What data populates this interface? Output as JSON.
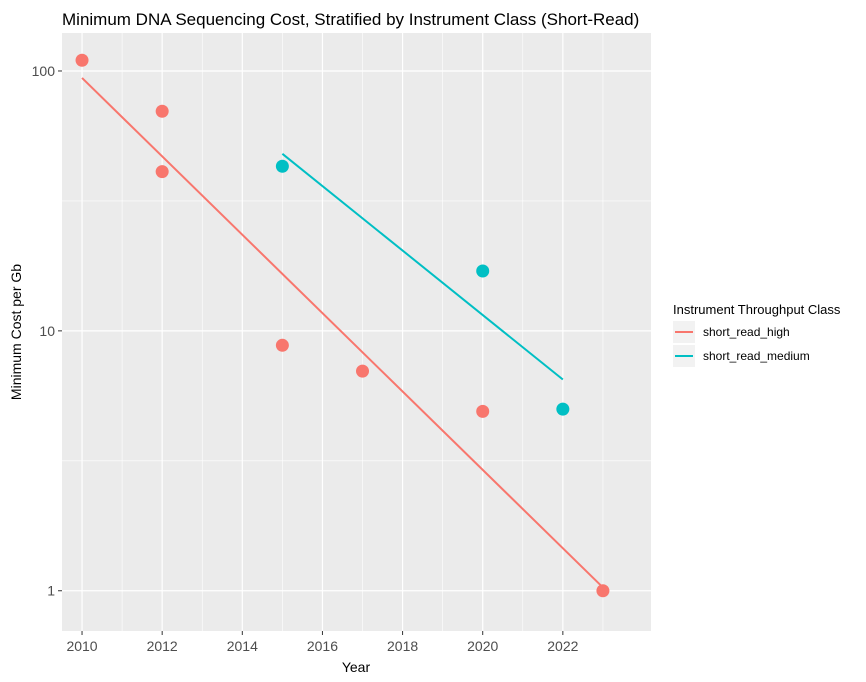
{
  "chart_data": {
    "type": "scatter",
    "title": "Minimum DNA Sequencing Cost, Stratified by Instrument Class (Short-Read)",
    "xlabel": "Year",
    "ylabel": "Minimum Cost per Gb",
    "xlim": [
      2009.5,
      2024.2
    ],
    "ylim": [
      0.7,
      140
    ],
    "y_scale": "log10",
    "x_ticks": [
      2010,
      2012,
      2014,
      2016,
      2018,
      2020,
      2022
    ],
    "x_tick_labels": [
      "2010",
      "2012",
      "2014",
      "2016",
      "2018",
      "2020",
      "2022"
    ],
    "y_ticks": [
      1,
      10,
      100
    ],
    "y_tick_labels": [
      "1",
      "10",
      "100"
    ],
    "grid": true,
    "legend": {
      "title": "Instrument Throughput Class",
      "position": "right"
    },
    "series": [
      {
        "name": "short_read_high",
        "color": "#F8766D",
        "points": [
          {
            "x": 2010,
            "y": 110
          },
          {
            "x": 2012,
            "y": 70
          },
          {
            "x": 2012,
            "y": 41
          },
          {
            "x": 2015,
            "y": 8.8
          },
          {
            "x": 2017,
            "y": 7.0
          },
          {
            "x": 2020,
            "y": 4.9
          },
          {
            "x": 2023,
            "y": 1.0
          }
        ],
        "fit_line": [
          {
            "x": 2010,
            "y": 94
          },
          {
            "x": 2023,
            "y": 1.03
          }
        ]
      },
      {
        "name": "short_read_medium",
        "color": "#00BFC4",
        "points": [
          {
            "x": 2015,
            "y": 43
          },
          {
            "x": 2020,
            "y": 17
          },
          {
            "x": 2022,
            "y": 5.0
          }
        ],
        "fit_line": [
          {
            "x": 2015,
            "y": 48
          },
          {
            "x": 2022,
            "y": 6.5
          }
        ]
      }
    ]
  }
}
